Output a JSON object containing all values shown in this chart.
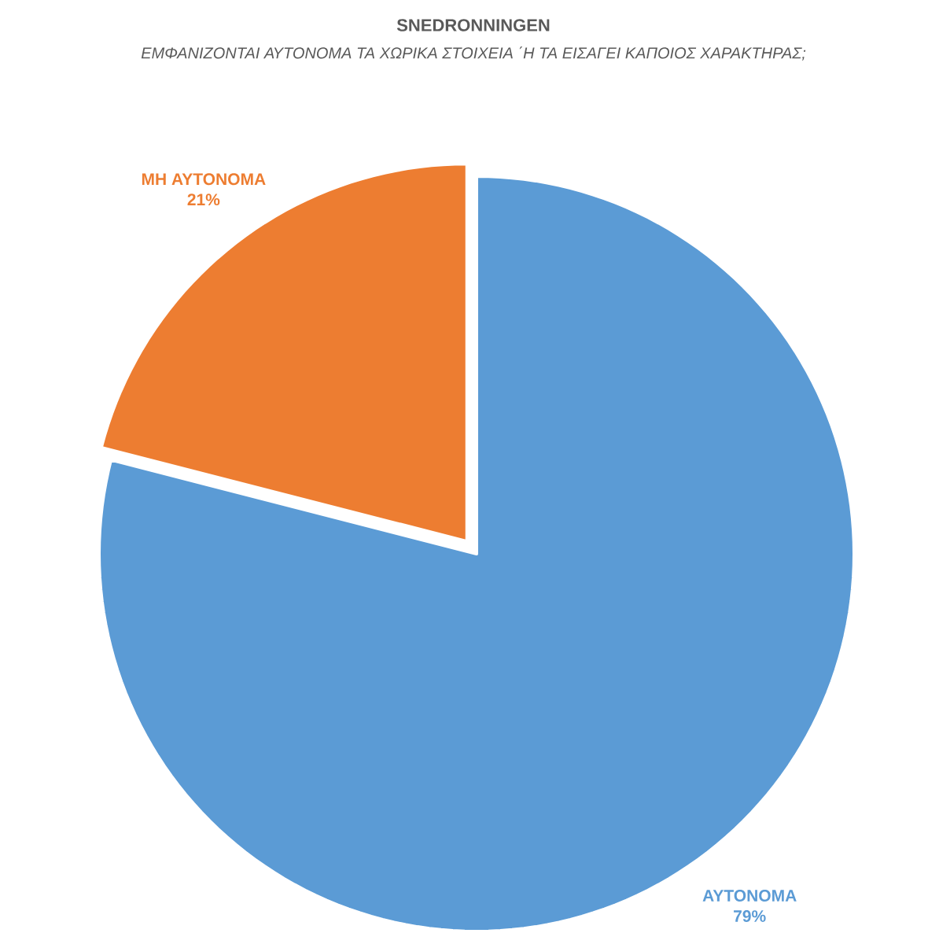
{
  "chart_data": {
    "type": "pie",
    "title": "SNEDRONNINGEN",
    "subtitle": "ΕΜΦΑΝΙΖΟΝΤΑΙ ΑΥΤΟΝΟΜΑ ΤΑ ΧΩΡΙΚΑ ΣΤΟΙΧΕΙΑ ΄Η ΤΑ ΕΙΣΑΓΕΙ ΚΑΠΟΙΟΣ ΧΑΡΑΚΤΗΡΑΣ;",
    "categories": [
      "ΑΥΤΟΝΟΜΑ",
      "ΜΗ ΑΥΤΟΝΟΜΑ"
    ],
    "values": [
      79,
      21
    ],
    "colors": [
      "#5b9bd5",
      "#ed7d31"
    ],
    "value_labels": [
      "79%",
      "21%"
    ]
  }
}
